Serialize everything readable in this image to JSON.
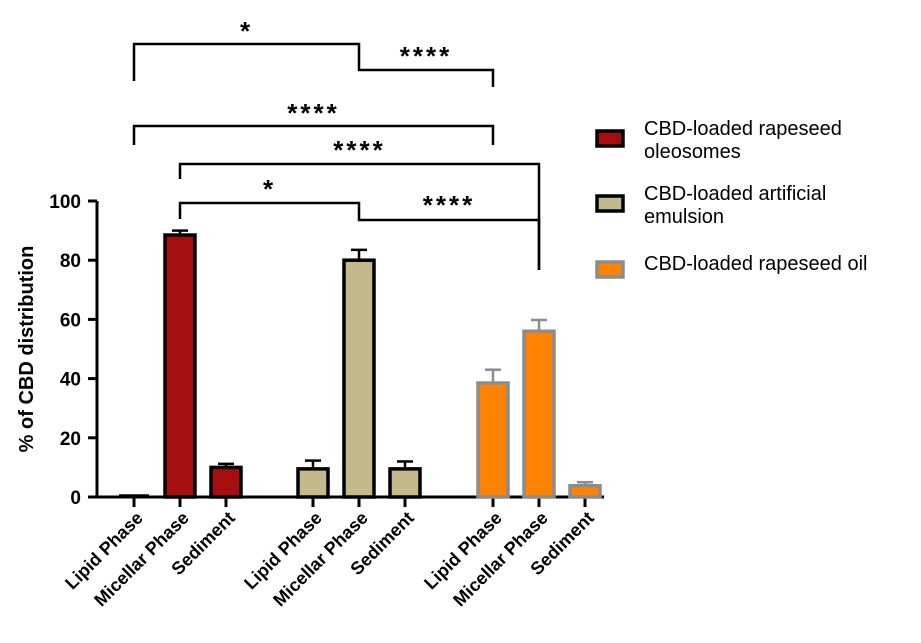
{
  "chart_data": {
    "type": "bar",
    "ylabel": "% of CBD distribution",
    "xlabel": "",
    "ylim": [
      0,
      100
    ],
    "yticks": [
      "0",
      "20",
      "40",
      "60",
      "80",
      "100"
    ],
    "categories": [
      "Lipid Phase",
      "Micellar Phase",
      "Sediment"
    ],
    "series": [
      {
        "name": "CBD-loaded rapeseed oleosomes",
        "legend_lines": [
          "CBD-loaded rapeseed",
          "oleosomes"
        ],
        "fill": "#a40e0e",
        "stroke": "#000000",
        "values": [
          0,
          88.5,
          10
        ],
        "errors": [
          0,
          1.5,
          1.2
        ]
      },
      {
        "name": "CBD-loaded artificial emulsion",
        "legend_lines": [
          "CBD-loaded artificial",
          "emulsion"
        ],
        "fill": "#c4b98a",
        "stroke": "#000000",
        "values": [
          9.5,
          80,
          9.5
        ],
        "errors": [
          2.8,
          3.5,
          2.5
        ]
      },
      {
        "name": "CBD-loaded rapeseed oil",
        "legend_lines": [
          "CBD-loaded rapeseed oil"
        ],
        "fill": "#ff8200",
        "stroke": "#8c8c8c",
        "values": [
          38.5,
          56,
          3.8
        ],
        "errors": [
          4.5,
          3.8,
          1.2
        ]
      }
    ],
    "significance": [
      {
        "label": "*",
        "from": [
          0,
          0
        ],
        "to": [
          1,
          1
        ]
      },
      {
        "label": "****",
        "from": [
          1,
          1
        ],
        "to": [
          2,
          0
        ]
      },
      {
        "label": "****",
        "from": [
          0,
          0
        ],
        "to": [
          2,
          0
        ]
      },
      {
        "label": "****",
        "from": [
          0,
          1
        ],
        "to": [
          2,
          1
        ]
      },
      {
        "label": "*",
        "from": [
          0,
          1
        ],
        "to": [
          1,
          1
        ]
      },
      {
        "label": "****",
        "from": [
          1,
          1
        ],
        "to": [
          2,
          1
        ]
      }
    ],
    "legend_position": "right"
  }
}
